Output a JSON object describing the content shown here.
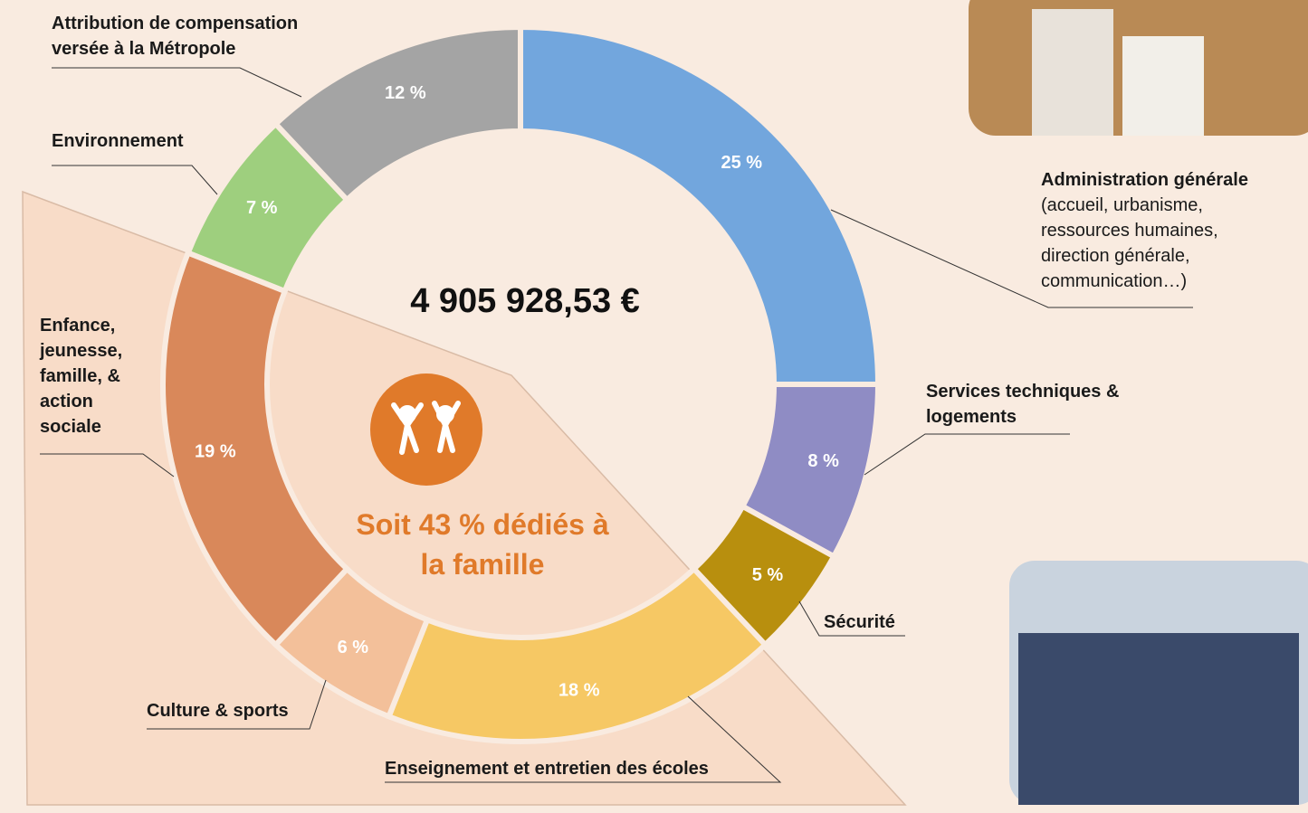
{
  "chart_data": {
    "type": "donut",
    "categories": [
      "Administration générale",
      "Services techniques & logements",
      "Sécurité",
      "Enseignement et entretien des écoles",
      "Culture & sports",
      "Enfance, jeunesse, famille, & action sociale",
      "Environnement",
      "Attribution de compensation versée à la Métropole"
    ],
    "values": [
      25,
      8,
      5,
      18,
      6,
      19,
      7,
      12
    ],
    "value_labels": [
      "25 %",
      "8 %",
      "5 %",
      "18 %",
      "6 %",
      "19 %",
      "7 %",
      "12 %"
    ],
    "colors": [
      "#72a6dd",
      "#8f8cc4",
      "#b88f0e",
      "#f6c864",
      "#f3c09a",
      "#d9885a",
      "#9ecf7e",
      "#a4a4a4"
    ],
    "annotations": [
      "4 905 928,53 €",
      "Soit 43 % dédiés à la famille",
      "(accueil, urbanisme, ressources humaines, direction générale, communication…)"
    ]
  }
}
